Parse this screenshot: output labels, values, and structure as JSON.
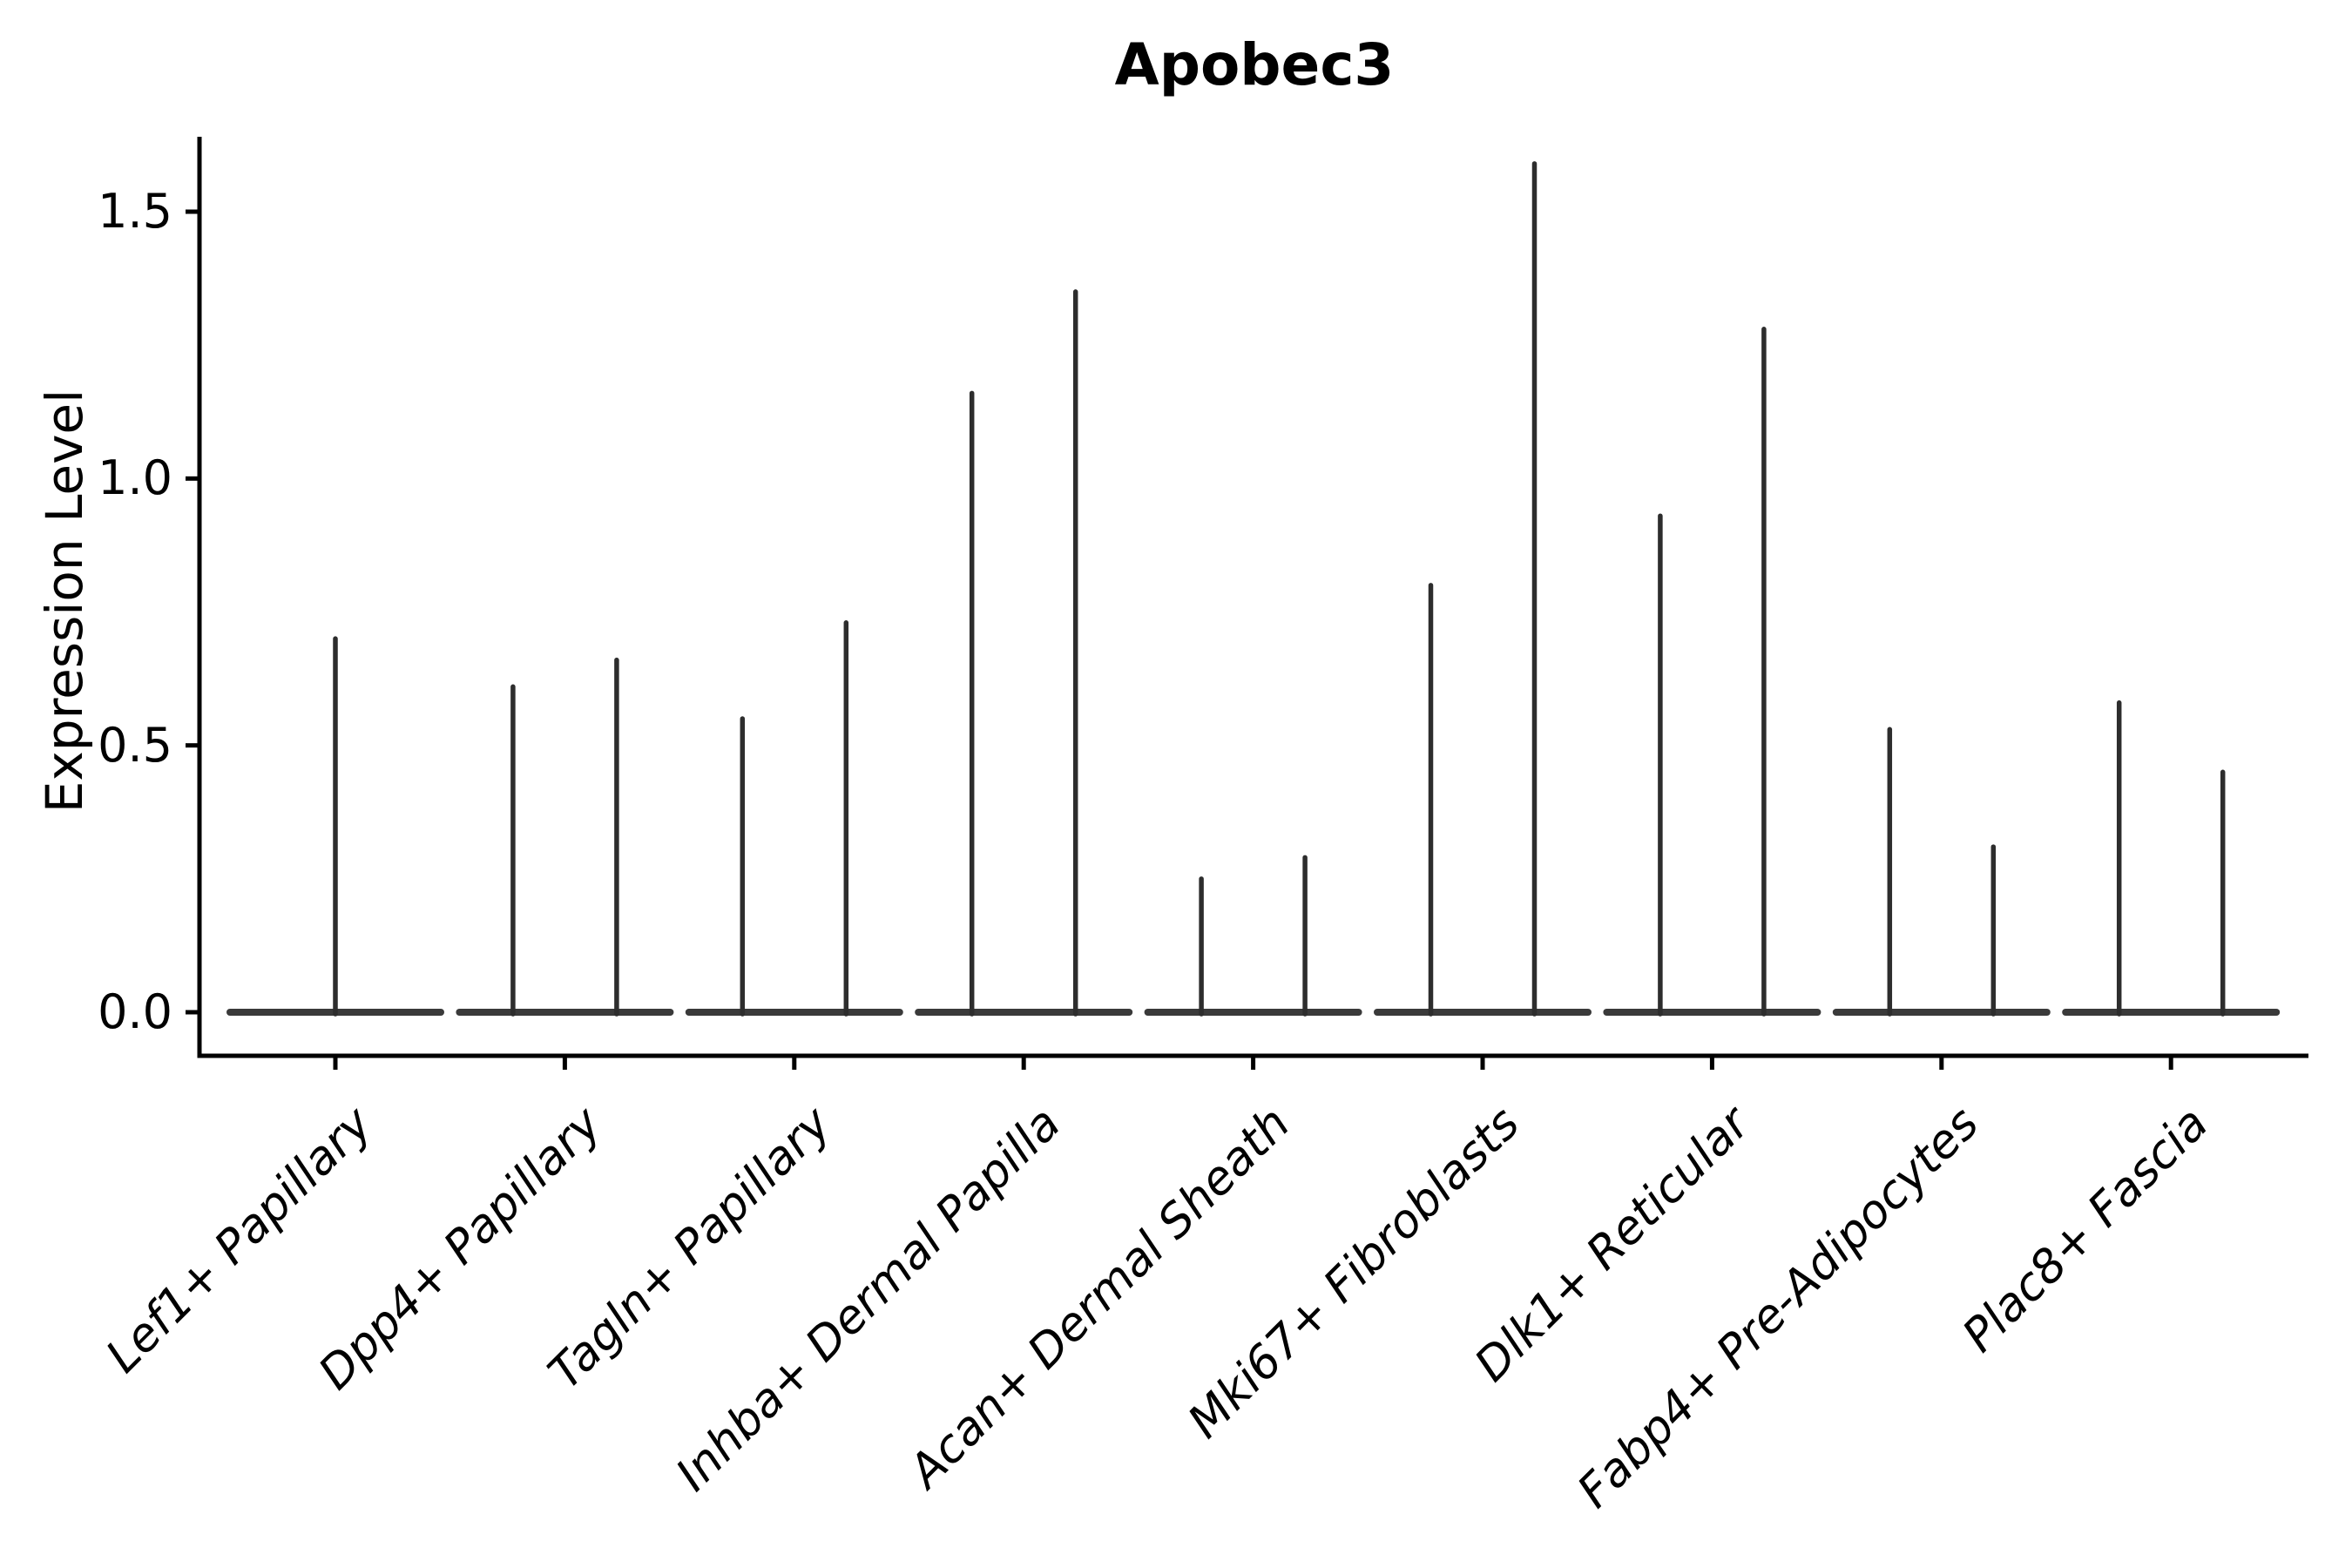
{
  "chart_data": {
    "type": "violin",
    "title": "Apobec3",
    "xlabel": "",
    "ylabel": "Expression Level",
    "ytick_labels": [
      "0.0",
      "0.5",
      "1.0",
      "1.5"
    ],
    "ytick_values": [
      0.0,
      0.5,
      1.0,
      1.5
    ],
    "ylim": [
      -0.08,
      1.64
    ],
    "legend": "none",
    "grid": false,
    "violins": [
      {
        "label": "Lef1+ Papillary",
        "spike_maxima": [
          0.7
        ]
      },
      {
        "label": "Dpp4+ Papillary",
        "spike_maxima": [
          0.61,
          0.66
        ]
      },
      {
        "label": "Tagln+ Papillary",
        "spike_maxima": [
          0.55,
          0.73
        ]
      },
      {
        "label": "Inhba+ Dermal Papilla",
        "spike_maxima": [
          1.16,
          1.35
        ]
      },
      {
        "label": "Acan+ Dermal Sheath",
        "spike_maxima": [
          0.25,
          0.29
        ]
      },
      {
        "label": "Mki67+ Fibroblasts",
        "spike_maxima": [
          0.8,
          1.59
        ]
      },
      {
        "label": "Dlk1+ Reticular",
        "spike_maxima": [
          0.93,
          1.28
        ]
      },
      {
        "label": "Fabp4+ Pre-Adipocytes",
        "spike_maxima": [
          0.53,
          0.31
        ]
      },
      {
        "label": "Plac8+ Fascia",
        "spike_maxima": [
          0.58,
          0.45
        ]
      }
    ],
    "baseline_value": 0.0,
    "colors": {
      "background": "#ffffff",
      "axis": "#000000",
      "text": "#000000",
      "violin_spike": "#2d2d2d",
      "violin_base": "#3a3a3a"
    }
  }
}
